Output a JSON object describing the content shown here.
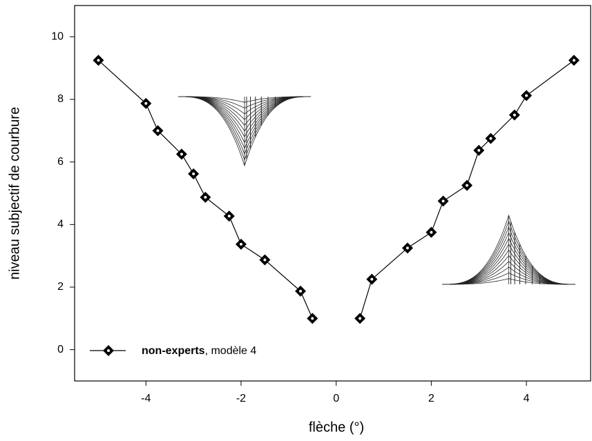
{
  "chart_data": {
    "type": "line",
    "x_label": "flèche (°)",
    "y_label": "niveau subjectif de courbure",
    "x": [
      -5,
      -4,
      -3.75,
      -3.25,
      -3,
      -2.75,
      -2.25,
      -2,
      -1.5,
      -0.75,
      -0.5,
      0,
      0.5,
      0.75,
      1.5,
      2,
      2.25,
      2.75,
      3,
      3.25,
      3.75,
      4,
      5
    ],
    "series": [
      {
        "name": "non-experts",
        "legend_suffix": ", modèle 4",
        "color": "#000000",
        "values": [
          9.25,
          7.87,
          7.0,
          6.25,
          5.62,
          4.87,
          4.27,
          3.37,
          2.87,
          1.87,
          1.0,
          null,
          1.0,
          2.25,
          3.25,
          3.75,
          4.75,
          5.25,
          6.37,
          6.75,
          7.5,
          8.12,
          9.25
        ]
      }
    ],
    "xlim": [
      -5.5,
      5.35
    ],
    "ylim": [
      -1,
      11
    ],
    "xticks": [
      -4,
      -2,
      0,
      2,
      4
    ],
    "yticks": [
      0,
      2,
      4,
      6,
      8,
      10
    ],
    "grid": false,
    "legend": "lower left"
  }
}
